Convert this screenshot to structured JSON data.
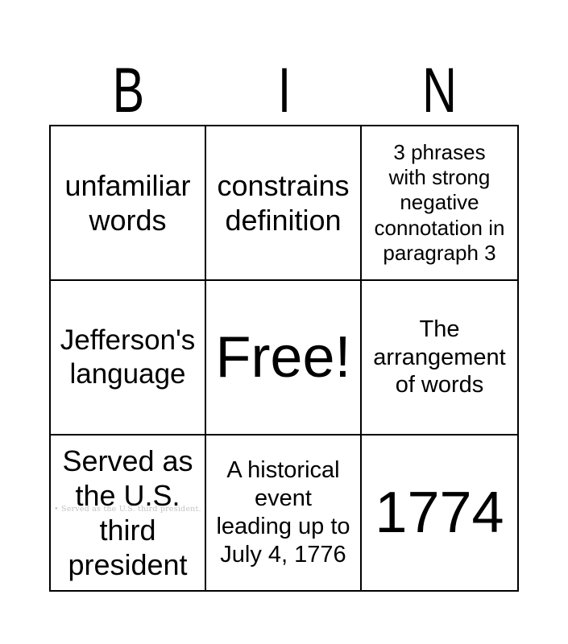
{
  "header": {
    "letters": [
      "B",
      "I",
      "N"
    ]
  },
  "grid": {
    "cells": [
      {
        "text": "unfamiliar\nwords"
      },
      {
        "text": "constrains\ndefinition"
      },
      {
        "text": "3 phrases\nwith strong\nnegative\nconnotation in\nparagraph 3"
      },
      {
        "text": "Jefferson's\nlanguage"
      },
      {
        "text": "Free!"
      },
      {
        "text": "The\narrangement\nof words"
      },
      {
        "text": "Served as\nthe U.S.\nthird\npresident"
      },
      {
        "text": "A historical\nevent\nleading up to\nJuly 4, 1776"
      },
      {
        "text": "1774"
      }
    ]
  },
  "ghost_text": "• Served as the U.S. third president.",
  "colors": {
    "text": "#000000",
    "ghost_text": "#c4c4c4",
    "grid_lines": "#000000",
    "background": "#ffffff"
  }
}
